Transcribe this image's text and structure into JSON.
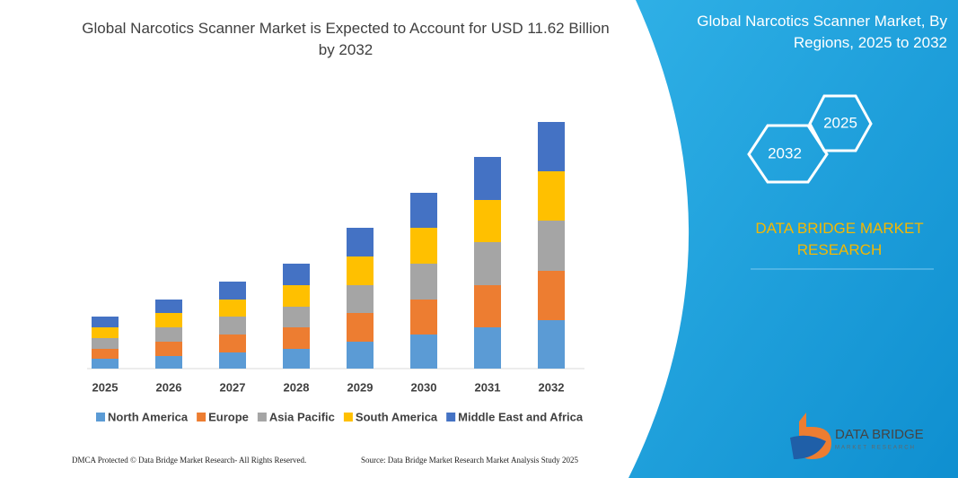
{
  "chart_data": {
    "type": "bar",
    "stacked": true,
    "title": "Global Narcotics Scanner Market is Expected to Account for USD 11.62 Billion by 2032",
    "categories": [
      "2025",
      "2026",
      "2027",
      "2028",
      "2029",
      "2030",
      "2031",
      "2032"
    ],
    "series": [
      {
        "name": "North America",
        "color": "#5b9bd5",
        "values": [
          11,
          14,
          18,
          22,
          30,
          38,
          46,
          54
        ]
      },
      {
        "name": "Europe",
        "color": "#ed7d31",
        "values": [
          11,
          16,
          20,
          24,
          32,
          39,
          47,
          55
        ]
      },
      {
        "name": "Asia Pacific",
        "color": "#a5a5a5",
        "values": [
          12,
          16,
          20,
          23,
          31,
          40,
          48,
          56
        ]
      },
      {
        "name": "South America",
        "color": "#ffc000",
        "values": [
          12,
          16,
          19,
          24,
          32,
          40,
          47,
          55
        ]
      },
      {
        "name": "Middle East and Africa",
        "color": "#4472c4",
        "values": [
          12,
          15,
          20,
          24,
          32,
          39,
          48,
          55
        ]
      }
    ],
    "ylim": [
      0,
      290
    ]
  },
  "side_panel": {
    "title": "Global Narcotics Scanner Market, By Regions, 2025 to 2032",
    "hexagons": [
      "2025",
      "2032"
    ],
    "brand": "DATA BRIDGE MARKET RESEARCH"
  },
  "logo": {
    "name": "DATA BRIDGE",
    "tagline": "MARKET RESEARCH"
  },
  "footer": {
    "left": "DMCA Protected © Data Bridge Market Research- All Rights Reserved.",
    "right": "Source: Data Bridge Market Research Market Analysis Study 2025"
  }
}
